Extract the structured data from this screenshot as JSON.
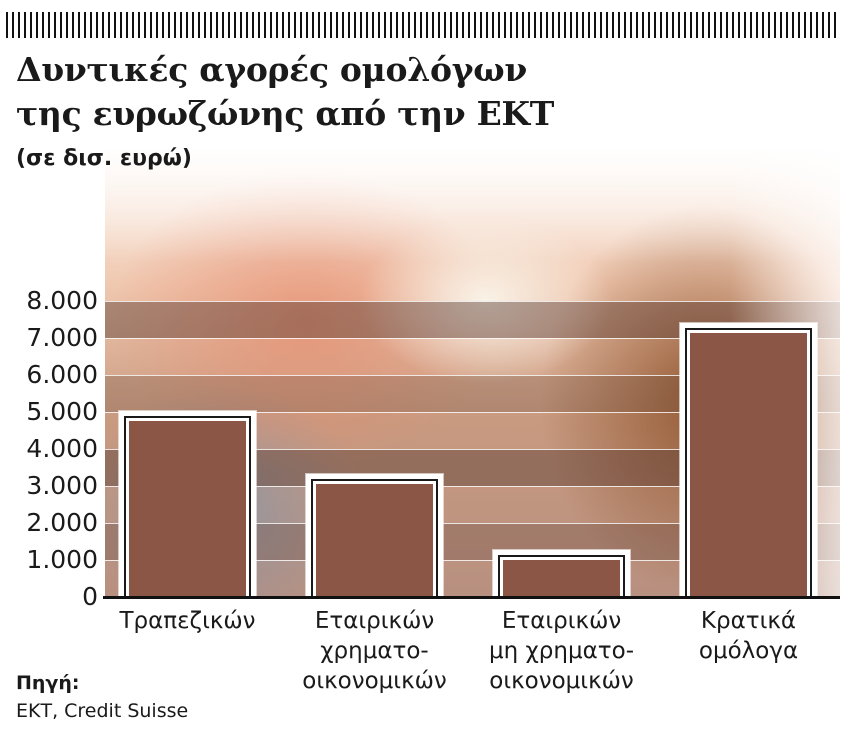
{
  "header": {
    "title_line1": "Δυντικές αγορές ομολόγων",
    "title_line2": "της ευρωζώνης από την ΕΚΤ",
    "subtitle": "(σε δισ. ευρώ)"
  },
  "y_axis": {
    "ticks": [
      "8.000",
      "7.000",
      "6.000",
      "5.000",
      "4.000",
      "3.000",
      "2.000",
      "1.000",
      "0"
    ]
  },
  "categories": [
    {
      "lines": [
        "Τραπεζικών"
      ]
    },
    {
      "lines": [
        "Εταιρικών",
        "χρηματο-",
        "οικονομικών"
      ]
    },
    {
      "lines": [
        "Εταιρικών",
        "μη χρηματο-",
        "οικονομικών"
      ]
    },
    {
      "lines": [
        "Κρατικά",
        "ομόλογα"
      ]
    }
  ],
  "source": {
    "label": "Πηγή:",
    "text": "ΕΚΤ, Credit Suisse"
  },
  "colors": {
    "bar_fill": "#8c5646",
    "axis": "#111111",
    "text": "#1a1a1a"
  },
  "chart_data": {
    "type": "bar",
    "title": "Δυντικές αγορές ομολόγων της ευρωζώνης από την ΕΚΤ",
    "subtitle": "(σε δισ. ευρώ)",
    "categories": [
      "Τραπεζικών",
      "Εταιρικών χρηματο-οικονομικών",
      "Εταιρικών μη χρηματο-οικονομικών",
      "Κρατικά ομόλογα"
    ],
    "values": [
      4800,
      3100,
      1050,
      7200
    ],
    "xlabel": "",
    "ylabel": "δισ. ευρώ",
    "ylim": [
      0,
      8000
    ],
    "yticks": [
      0,
      1000,
      2000,
      3000,
      4000,
      5000,
      6000,
      7000,
      8000
    ],
    "grid": true,
    "legend": "none",
    "source": "ΕΚΤ, Credit Suisse"
  }
}
